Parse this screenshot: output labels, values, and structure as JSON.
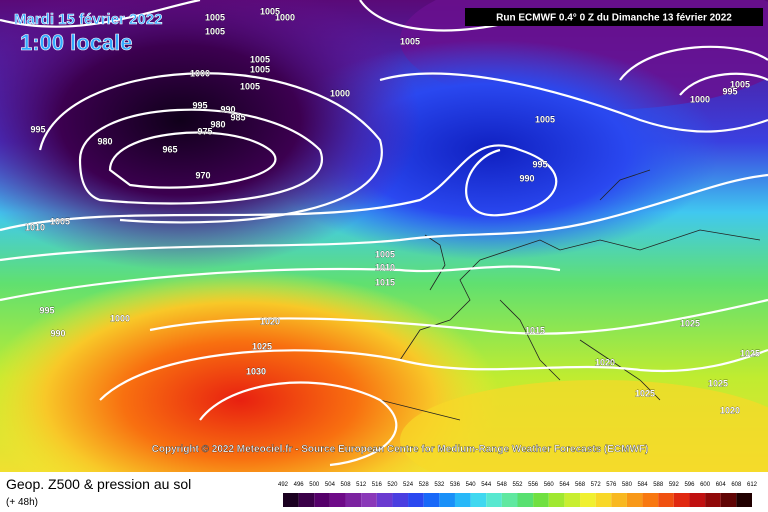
{
  "header": {
    "date": "Mardi 15 février 2022",
    "time": "1:00 locale",
    "run": "Run ECMWF 0.4° 0 Z du Dimanche 13 février 2022"
  },
  "map": {
    "isobar_labels": [
      1005,
      1005,
      1000,
      1005,
      1005,
      1000,
      1005,
      1005,
      1005,
      1000,
      995,
      990,
      985,
      980,
      975,
      995,
      980,
      965,
      970,
      1005,
      995,
      990,
      1005,
      1010,
      1005,
      1010,
      1015,
      995,
      990,
      1000,
      1020,
      1025,
      1030,
      1015,
      1020,
      1025,
      1025,
      1025,
      1025,
      1020,
      1000,
      995,
      1005
    ],
    "copyright": "Copyright © 2022 Meteociel.fr - Source European Centre for Medium-Range Weather Forecasts (ECMWF)"
  },
  "legend": {
    "title": "Geop. Z500 & pression au sol",
    "subtitle": "(+ 48h)",
    "scale": [
      492,
      496,
      500,
      504,
      508,
      512,
      516,
      520,
      524,
      528,
      532,
      536,
      540,
      544,
      548,
      552,
      556,
      560,
      564,
      568,
      572,
      576,
      580,
      584,
      588,
      592,
      596,
      600,
      604,
      608,
      612
    ],
    "colors": [
      "#1a0020",
      "#3a0048",
      "#55006a",
      "#6e0a88",
      "#7c22a0",
      "#8a38b8",
      "#6a3ad0",
      "#4a3ee0",
      "#2a48f0",
      "#1868f8",
      "#1a90f8",
      "#28b8f8",
      "#40d8f0",
      "#58e8d0",
      "#60e8a0",
      "#58e070",
      "#70e040",
      "#a0e830",
      "#c8ee30",
      "#f0f030",
      "#f8d828",
      "#f8b820",
      "#f89818",
      "#f87810",
      "#f05010",
      "#e02810",
      "#c01010",
      "#900808",
      "#600404",
      "#200000"
    ]
  }
}
